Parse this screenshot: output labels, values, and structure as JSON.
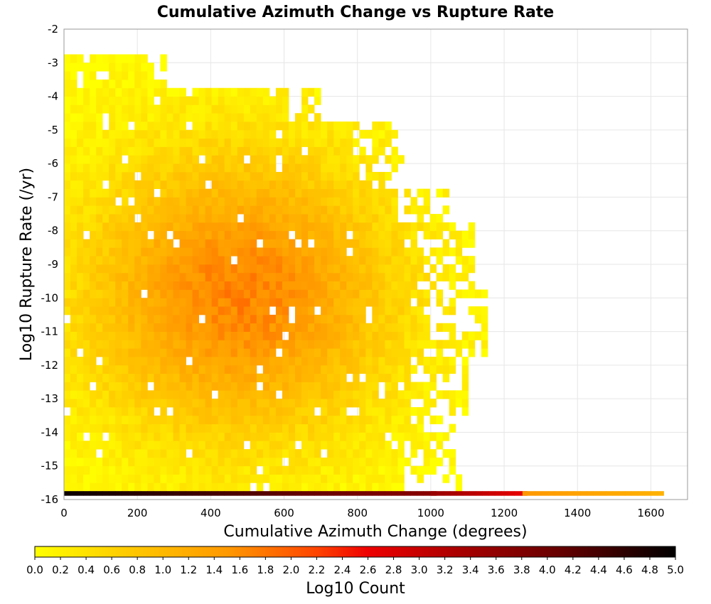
{
  "chart_data": {
    "type": "heatmap",
    "title": "Cumulative Azimuth Change vs Rupture Rate",
    "xlabel": "Cumulative Azimuth Change (degrees)",
    "ylabel": "Log10 Rupture Rate (/yr)",
    "xlim": [
      0,
      1700
    ],
    "ylim": [
      -16,
      -2
    ],
    "x_ticks": [
      "0",
      "200",
      "400",
      "600",
      "800",
      "1000",
      "1200",
      "1400",
      "1600"
    ],
    "y_ticks": [
      "-2",
      "-3",
      "-4",
      "-5",
      "-6",
      "-7",
      "-8",
      "-9",
      "-10",
      "-11",
      "-12",
      "-13",
      "-14",
      "-15",
      "-16"
    ],
    "grid": true,
    "colorbar": {
      "label": "Log10 Count",
      "range": [
        0.0,
        5.0
      ],
      "ticks": [
        "0.0",
        "0.2",
        "0.4",
        "0.6",
        "0.8",
        "1.0",
        "1.2",
        "1.4",
        "1.6",
        "1.8",
        "2.0",
        "2.2",
        "2.4",
        "2.6",
        "2.8",
        "3.0",
        "3.2",
        "3.4",
        "3.6",
        "3.8",
        "4.0",
        "4.2",
        "4.4",
        "4.6",
        "4.8",
        "5.0"
      ],
      "colormap": [
        "#ffff00",
        "#ffcc00",
        "#ff9900",
        "#ff4400",
        "#ee0000",
        "#aa0000",
        "#660000",
        "#000000"
      ]
    },
    "x_bin_width": 17.5,
    "y_bin_height": 0.25,
    "density_peak": {
      "x": 470,
      "y": -10,
      "log10_count": 1.7
    },
    "bottom_row": {
      "y_bin": [
        -16,
        -15.75
      ],
      "segments": [
        {
          "x_range": [
            0,
            1000
          ],
          "log10_count": 4.9
        },
        {
          "x_range": [
            1000,
            1250
          ],
          "log10_count": 3.5
        },
        {
          "x_range": [
            1250,
            1620
          ],
          "log10_count": 1.5
        }
      ]
    }
  }
}
